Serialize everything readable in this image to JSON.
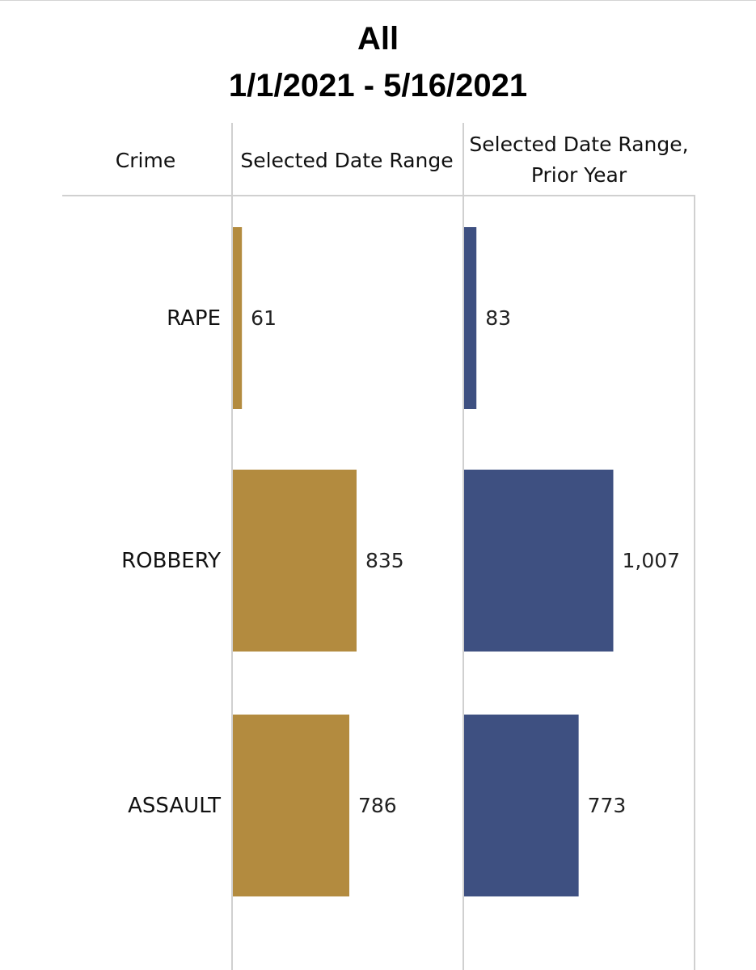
{
  "chart_data": {
    "type": "bar",
    "orientation": "horizontal",
    "title": "All",
    "subtitle": "1/1/2021 - 5/16/2021",
    "row_header": "Crime",
    "categories": [
      "RAPE",
      "ROBBERY",
      "ASSAULT"
    ],
    "series": [
      {
        "name": "Selected Date Range",
        "values": [
          61,
          835,
          786
        ],
        "labels": [
          "61",
          "835",
          "786"
        ],
        "color": "#b38b3f"
      },
      {
        "name": "Selected Date Range,\nPrior Year",
        "values": [
          83,
          1007,
          773
        ],
        "labels": [
          "83",
          "1,007",
          "773"
        ],
        "color": "#3e5081"
      }
    ],
    "xlim": [
      0,
      1550
    ],
    "grid": false,
    "legend": "none"
  }
}
